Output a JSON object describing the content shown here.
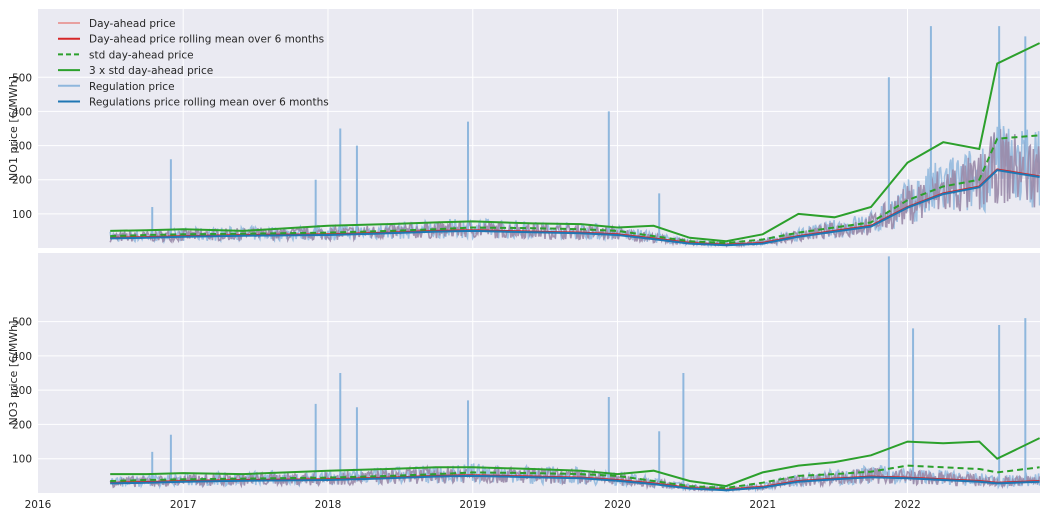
{
  "chart_data": [
    {
      "type": "line",
      "ylabel": "NO1 price [€/MWh]",
      "yticks": [
        100,
        200,
        300,
        400,
        500
      ],
      "ylim": [
        0,
        700
      ],
      "xlim": [
        "2016-01-01",
        "2022-12-01"
      ],
      "grid": true,
      "legend_position": "top-left",
      "legend": [
        "Day-ahead price",
        "Day-ahead price rolling mean over 6 months",
        "std day-ahead price",
        "3 x std day-ahead price",
        "Regulation price",
        "Regulations price rolling mean over 6 months"
      ],
      "series": [
        {
          "name": "Day-ahead price rolling mean over 6 months",
          "color": "#d62728",
          "style": "solid",
          "x": [
            "2016-07-01",
            "2016-10-01",
            "2017-01-01",
            "2017-06-01",
            "2018-01-01",
            "2018-06-01",
            "2018-10-01",
            "2019-01-01",
            "2019-06-01",
            "2019-10-01",
            "2020-01-01",
            "2020-04-01",
            "2020-07-01",
            "2020-10-01",
            "2021-01-01",
            "2021-04-01",
            "2021-07-01",
            "2021-10-01",
            "2022-01-01",
            "2022-04-01",
            "2022-07-01",
            "2022-08-15",
            "2022-11-30"
          ],
          "y": [
            30,
            32,
            35,
            38,
            40,
            45,
            50,
            52,
            48,
            45,
            40,
            28,
            15,
            10,
            15,
            35,
            50,
            65,
            120,
            160,
            180,
            230,
            210
          ]
        },
        {
          "name": "std day-ahead price",
          "color": "#2ca02c",
          "style": "dashed",
          "x": [
            "2016-07-01",
            "2016-10-01",
            "2017-01-01",
            "2017-06-01",
            "2018-01-01",
            "2018-06-01",
            "2018-10-01",
            "2019-01-01",
            "2019-06-01",
            "2019-10-01",
            "2020-01-01",
            "2020-04-01",
            "2020-07-01",
            "2020-10-01",
            "2021-01-01",
            "2021-04-01",
            "2021-07-01",
            "2021-10-01",
            "2022-01-01",
            "2022-04-01",
            "2022-07-01",
            "2022-08-15",
            "2022-11-30"
          ],
          "y": [
            35,
            38,
            40,
            42,
            45,
            50,
            55,
            60,
            58,
            55,
            50,
            35,
            20,
            15,
            25,
            45,
            60,
            75,
            140,
            180,
            200,
            320,
            330
          ]
        },
        {
          "name": "3 x std day-ahead price",
          "color": "#2ca02c",
          "style": "solid",
          "x": [
            "2016-07-01",
            "2016-10-01",
            "2017-01-01",
            "2017-06-01",
            "2018-01-01",
            "2018-06-01",
            "2018-10-01",
            "2019-01-01",
            "2019-06-01",
            "2019-10-01",
            "2020-01-01",
            "2020-04-01",
            "2020-07-01",
            "2020-10-01",
            "2021-01-01",
            "2021-04-01",
            "2021-07-01",
            "2021-10-01",
            "2022-01-01",
            "2022-04-01",
            "2022-07-01",
            "2022-08-15",
            "2022-11-30"
          ],
          "y": [
            50,
            52,
            55,
            50,
            65,
            70,
            75,
            78,
            72,
            70,
            60,
            65,
            30,
            20,
            40,
            100,
            90,
            120,
            250,
            310,
            290,
            540,
            600
          ]
        },
        {
          "name": "Regulations price rolling mean over 6 months",
          "color": "#1f77b4",
          "style": "solid",
          "x": [
            "2016-07-01",
            "2016-10-01",
            "2017-01-01",
            "2017-06-01",
            "2018-01-01",
            "2018-06-01",
            "2018-10-01",
            "2019-01-01",
            "2019-06-01",
            "2019-10-01",
            "2020-01-01",
            "2020-04-01",
            "2020-07-01",
            "2020-10-01",
            "2021-01-01",
            "2021-04-01",
            "2021-07-01",
            "2021-10-01",
            "2022-01-01",
            "2022-04-01",
            "2022-07-01",
            "2022-08-15",
            "2022-11-30"
          ],
          "y": [
            28,
            30,
            33,
            36,
            38,
            43,
            48,
            50,
            46,
            43,
            38,
            26,
            13,
            8,
            13,
            33,
            48,
            63,
            118,
            158,
            178,
            228,
            208
          ]
        }
      ],
      "spikes": {
        "name": "Regulation price",
        "color": "#8fb7dd",
        "x": [
          "2016-10-15",
          "2016-12-01",
          "2017-12-01",
          "2018-02-01",
          "2018-03-15",
          "2018-12-20",
          "2019-12-10",
          "2020-04-15",
          "2021-11-15",
          "2022-03-01",
          "2022-08-20",
          "2022-10-25"
        ],
        "y": [
          120,
          260,
          200,
          350,
          300,
          370,
          400,
          160,
          500,
          650,
          650,
          620
        ]
      }
    },
    {
      "type": "line",
      "ylabel": "NO3 price [€/MWh]",
      "yticks": [
        100,
        200,
        300,
        400,
        500
      ],
      "ylim": [
        0,
        700
      ],
      "xlim": [
        "2016-01-01",
        "2022-12-01"
      ],
      "xticks": [
        "2016",
        "2017",
        "2018",
        "2019",
        "2020",
        "2021",
        "2022"
      ],
      "grid": true,
      "series": [
        {
          "name": "Day-ahead price rolling mean over 6 months",
          "color": "#d62728",
          "style": "solid",
          "x": [
            "2016-07-01",
            "2016-10-01",
            "2017-01-01",
            "2017-06-01",
            "2018-01-01",
            "2018-06-01",
            "2018-10-01",
            "2019-01-01",
            "2019-06-01",
            "2019-10-01",
            "2020-01-01",
            "2020-04-01",
            "2020-07-01",
            "2020-10-01",
            "2021-01-01",
            "2021-04-01",
            "2021-07-01",
            "2021-10-01",
            "2022-01-01",
            "2022-04-01",
            "2022-07-01",
            "2022-08-15",
            "2022-11-30"
          ],
          "y": [
            30,
            32,
            35,
            38,
            40,
            45,
            50,
            52,
            48,
            45,
            38,
            28,
            15,
            10,
            18,
            35,
            42,
            48,
            45,
            40,
            35,
            30,
            35
          ]
        },
        {
          "name": "std day-ahead price",
          "color": "#2ca02c",
          "style": "dashed",
          "x": [
            "2016-07-01",
            "2016-10-01",
            "2017-01-01",
            "2017-06-01",
            "2018-01-01",
            "2018-06-01",
            "2018-10-01",
            "2019-01-01",
            "2019-06-01",
            "2019-10-01",
            "2020-01-01",
            "2020-04-01",
            "2020-07-01",
            "2020-10-01",
            "2021-01-01",
            "2021-04-01",
            "2021-07-01",
            "2021-10-01",
            "2022-01-01",
            "2022-04-01",
            "2022-07-01",
            "2022-08-15",
            "2022-11-30"
          ],
          "y": [
            35,
            38,
            40,
            42,
            45,
            50,
            55,
            60,
            58,
            55,
            50,
            35,
            20,
            15,
            30,
            50,
            55,
            62,
            80,
            75,
            70,
            60,
            75
          ]
        },
        {
          "name": "3 x std day-ahead price",
          "color": "#2ca02c",
          "style": "solid",
          "x": [
            "2016-07-01",
            "2016-10-01",
            "2017-01-01",
            "2017-06-01",
            "2018-01-01",
            "2018-06-01",
            "2018-10-01",
            "2019-01-01",
            "2019-06-01",
            "2019-10-01",
            "2020-01-01",
            "2020-04-01",
            "2020-07-01",
            "2020-10-01",
            "2021-01-01",
            "2021-04-01",
            "2021-07-01",
            "2021-10-01",
            "2022-01-01",
            "2022-04-01",
            "2022-07-01",
            "2022-08-15",
            "2022-11-30"
          ],
          "y": [
            55,
            55,
            58,
            55,
            65,
            70,
            75,
            75,
            70,
            65,
            55,
            65,
            35,
            20,
            60,
            80,
            90,
            110,
            150,
            145,
            150,
            100,
            160
          ]
        },
        {
          "name": "Regulations price rolling mean over 6 months",
          "color": "#1f77b4",
          "style": "solid",
          "x": [
            "2016-07-01",
            "2016-10-01",
            "2017-01-01",
            "2017-06-01",
            "2018-01-01",
            "2018-06-01",
            "2018-10-01",
            "2019-01-01",
            "2019-06-01",
            "2019-10-01",
            "2020-01-01",
            "2020-04-01",
            "2020-07-01",
            "2020-10-01",
            "2021-01-01",
            "2021-04-01",
            "2021-07-01",
            "2021-10-01",
            "2022-01-01",
            "2022-04-01",
            "2022-07-01",
            "2022-08-15",
            "2022-11-30"
          ],
          "y": [
            28,
            30,
            33,
            36,
            38,
            43,
            48,
            50,
            46,
            43,
            36,
            26,
            13,
            8,
            16,
            33,
            40,
            46,
            43,
            38,
            33,
            28,
            33
          ]
        }
      ],
      "spikes": {
        "name": "Regulation price",
        "color": "#8fb7dd",
        "x": [
          "2016-10-15",
          "2016-12-01",
          "2017-12-01",
          "2018-02-01",
          "2018-03-15",
          "2018-12-20",
          "2019-12-10",
          "2020-04-15",
          "2020-06-15",
          "2021-11-15",
          "2022-01-15",
          "2022-08-20",
          "2022-10-25"
        ],
        "y": [
          120,
          170,
          260,
          350,
          250,
          270,
          280,
          180,
          350,
          690,
          480,
          490,
          510
        ]
      }
    }
  ]
}
